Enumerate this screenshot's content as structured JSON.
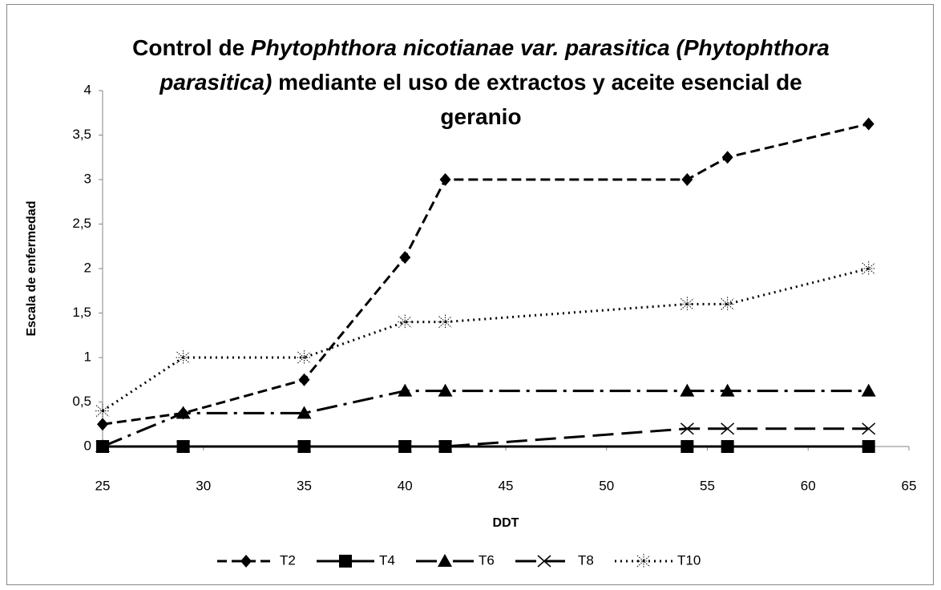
{
  "chart_data": {
    "type": "line",
    "title_lines": [
      [
        {
          "text": "Control de ",
          "italic": false
        },
        {
          "text": "Phytophthora nicotianae var. parasitica (Phytophthora",
          "italic": true
        }
      ],
      [
        {
          "text": "parasitica)",
          "italic": true
        },
        {
          "text": " mediante el uso de extractos y aceite esencial de",
          "italic": false
        }
      ],
      [
        {
          "text": "geranio",
          "italic": false
        }
      ]
    ],
    "x_label": "DDT",
    "y_label": "Escala de enfermedad",
    "x": [
      25,
      29,
      35,
      40,
      42,
      54,
      56,
      63
    ],
    "series": [
      {
        "name": "T2",
        "color": "#000000",
        "dash": "dashed",
        "marker": "diamond",
        "values": [
          0.25,
          0.375,
          0.75,
          2.125,
          3,
          3,
          3.25,
          3.625
        ]
      },
      {
        "name": "T4",
        "color": "#000000",
        "dash": "solid",
        "marker": "square",
        "values": [
          0,
          0,
          0,
          0,
          0,
          0,
          0,
          0
        ]
      },
      {
        "name": "T6",
        "color": "#000000",
        "dash": "dash-dot",
        "marker": "triangle",
        "values": [
          0,
          0.375,
          0.375,
          0.625,
          0.625,
          0.625,
          0.625,
          0.625
        ]
      },
      {
        "name": "T8",
        "color": "#000000",
        "dash": "long-dash",
        "marker": "x",
        "values": [
          0,
          0,
          0,
          0,
          0,
          0.2,
          0.2,
          0.2
        ]
      },
      {
        "name": "T10",
        "color": "#000000",
        "dash": "dotted",
        "marker": "star",
        "values": [
          0.4,
          1,
          1,
          1.4,
          1.4,
          1.6,
          1.6,
          2
        ]
      }
    ],
    "xlim": [
      25,
      65
    ],
    "xticks": [
      25,
      30,
      35,
      40,
      45,
      50,
      55,
      60,
      65
    ],
    "ylim": [
      0,
      4
    ],
    "yticks": [
      0,
      {
        "value": 0.5,
        "label": "0,5"
      },
      1,
      {
        "value": 1.5,
        "label": "1,5"
      },
      2,
      {
        "value": 2.5,
        "label": "2,5"
      },
      3,
      {
        "value": 3.5,
        "label": "3,5"
      },
      4
    ],
    "grid": false,
    "legend": "bottom"
  }
}
